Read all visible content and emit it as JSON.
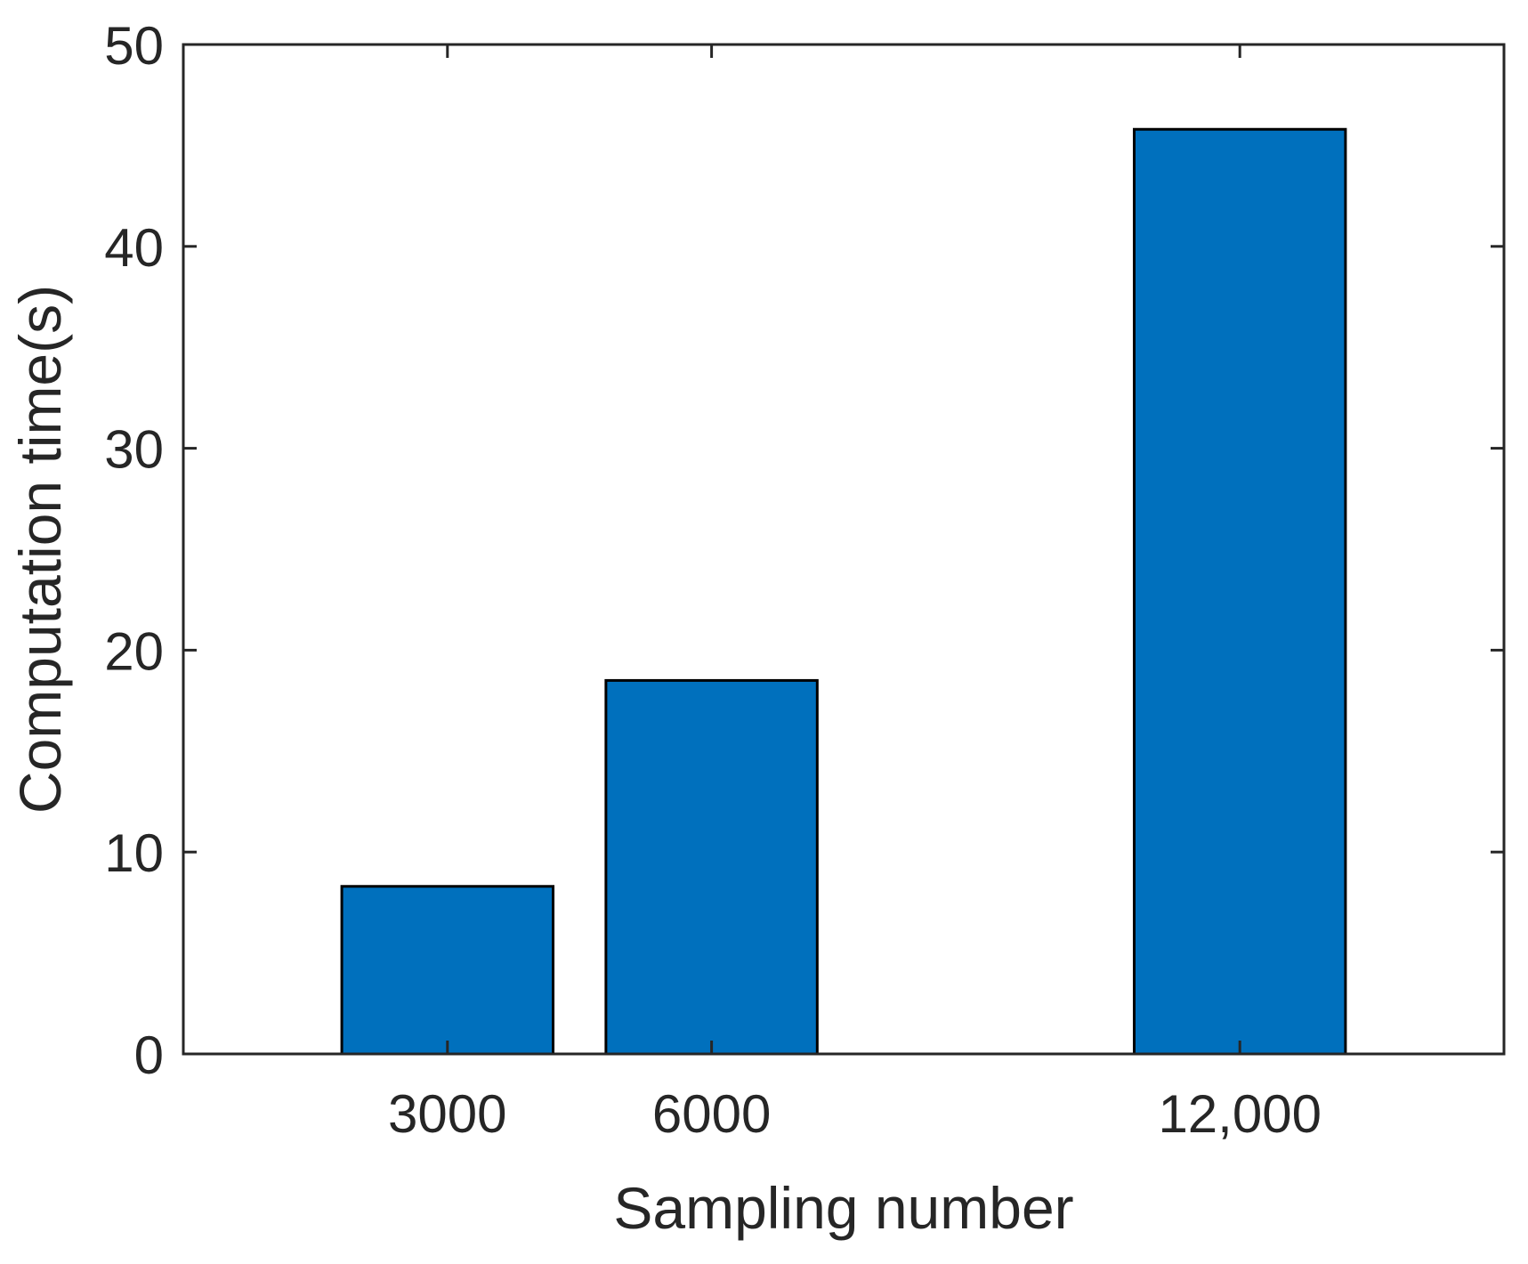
{
  "chart_data": {
    "type": "bar",
    "title": "",
    "xlabel": "Sampling number",
    "ylabel": "Computation time(s)",
    "x": [
      3000,
      6000,
      12000
    ],
    "categories": [
      "3000",
      "6000",
      "12,000"
    ],
    "values": [
      8.3,
      18.5,
      45.8
    ],
    "xlim": [
      0,
      15000
    ],
    "ylim": [
      0,
      50
    ],
    "yticks": [
      0,
      10,
      20,
      30,
      40,
      50
    ],
    "ytick_labels": [
      "0",
      "10",
      "20",
      "30",
      "40",
      "50"
    ],
    "xticks": [
      3000,
      6000,
      12000
    ],
    "bar_width": 2400,
    "grid": false,
    "legend": "none",
    "colors": {
      "bar_fill": "#0070BD",
      "bar_edge": "#000000",
      "axis": "#262626",
      "text": "#262626"
    }
  }
}
